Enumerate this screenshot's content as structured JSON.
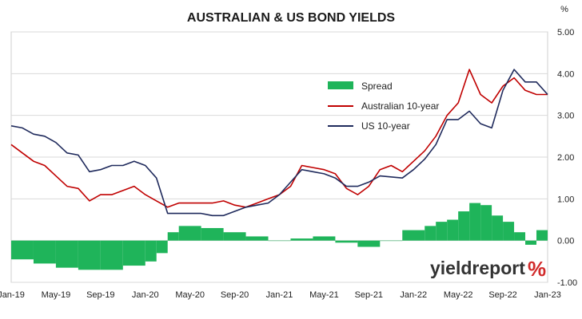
{
  "chart_data": {
    "type": "line",
    "title": "AUSTRALIAN & US BOND YIELDS",
    "unit_label": "%",
    "grid": true,
    "legend_placement": "upper-right inside plot",
    "y_axis_side": "right",
    "ylim": [
      -1.0,
      5.0
    ],
    "y_ticks": [
      5.0,
      4.0,
      3.0,
      2.0,
      1.0,
      0.0,
      -1.0
    ],
    "y_tick_labels": [
      "5.00",
      "4.00",
      "3.00",
      "2.00",
      "1.00",
      "0.00",
      "-1.00"
    ],
    "xlim": [
      "2019-01",
      "2023-01"
    ],
    "x_ticks": [
      "2019-01",
      "2019-05",
      "2019-09",
      "2020-01",
      "2020-05",
      "2020-09",
      "2021-01",
      "2021-05",
      "2021-09",
      "2022-01",
      "2022-05",
      "2022-09",
      "2023-01"
    ],
    "x_tick_labels": [
      "Jan-19",
      "May-19",
      "Sep-19",
      "Jan-20",
      "May-20",
      "Sep-20",
      "Jan-21",
      "May-21",
      "Sep-21",
      "Jan-22",
      "May-22",
      "Sep-22",
      "Jan-23"
    ],
    "series": [
      {
        "name": "Spread",
        "kind": "bar",
        "color": "#1fb45a",
        "x": [
          "2019-01",
          "2019-03",
          "2019-05",
          "2019-07",
          "2019-09",
          "2019-11",
          "2020-01",
          "2020-02",
          "2020-03",
          "2020-04",
          "2020-06",
          "2020-08",
          "2020-10",
          "2020-12",
          "2021-02",
          "2021-04",
          "2021-06",
          "2021-08",
          "2021-10",
          "2021-12",
          "2022-02",
          "2022-03",
          "2022-04",
          "2022-05",
          "2022-06",
          "2022-07",
          "2022-08",
          "2022-09",
          "2022-10",
          "2022-11",
          "2022-12",
          "2023-01"
        ],
        "values": [
          -0.45,
          -0.55,
          -0.65,
          -0.7,
          -0.7,
          -0.6,
          -0.5,
          -0.3,
          0.2,
          0.35,
          0.3,
          0.2,
          0.1,
          0.0,
          0.05,
          0.1,
          -0.05,
          -0.15,
          0.0,
          0.25,
          0.35,
          0.45,
          0.5,
          0.7,
          0.9,
          0.85,
          0.6,
          0.45,
          0.2,
          -0.1,
          0.25,
          0.05
        ]
      },
      {
        "name": "Australian 10-year",
        "kind": "line",
        "color": "#c00000",
        "x": [
          "2019-01",
          "2019-02",
          "2019-03",
          "2019-04",
          "2019-05",
          "2019-06",
          "2019-07",
          "2019-08",
          "2019-09",
          "2019-10",
          "2019-11",
          "2019-12",
          "2020-01",
          "2020-02",
          "2020-03",
          "2020-04",
          "2020-05",
          "2020-06",
          "2020-07",
          "2020-08",
          "2020-09",
          "2020-10",
          "2020-11",
          "2020-12",
          "2021-01",
          "2021-02",
          "2021-03",
          "2021-04",
          "2021-05",
          "2021-06",
          "2021-07",
          "2021-08",
          "2021-09",
          "2021-10",
          "2021-11",
          "2021-12",
          "2022-01",
          "2022-02",
          "2022-03",
          "2022-04",
          "2022-05",
          "2022-06",
          "2022-07",
          "2022-08",
          "2022-09",
          "2022-10",
          "2022-11",
          "2022-12",
          "2023-01"
        ],
        "values": [
          2.3,
          2.1,
          1.9,
          1.8,
          1.55,
          1.3,
          1.25,
          0.95,
          1.1,
          1.1,
          1.2,
          1.3,
          1.1,
          0.95,
          0.8,
          0.9,
          0.9,
          0.9,
          0.9,
          0.95,
          0.85,
          0.8,
          0.9,
          1.0,
          1.1,
          1.3,
          1.8,
          1.75,
          1.7,
          1.6,
          1.25,
          1.1,
          1.3,
          1.7,
          1.8,
          1.65,
          1.9,
          2.15,
          2.5,
          3.0,
          3.3,
          4.1,
          3.5,
          3.3,
          3.7,
          3.9,
          3.6,
          3.5,
          3.5
        ]
      },
      {
        "name": "US 10-year",
        "kind": "line",
        "color": "#1f2a5c",
        "x": [
          "2019-01",
          "2019-02",
          "2019-03",
          "2019-04",
          "2019-05",
          "2019-06",
          "2019-07",
          "2019-08",
          "2019-09",
          "2019-10",
          "2019-11",
          "2019-12",
          "2020-01",
          "2020-02",
          "2020-03",
          "2020-04",
          "2020-05",
          "2020-06",
          "2020-07",
          "2020-08",
          "2020-09",
          "2020-10",
          "2020-11",
          "2020-12",
          "2021-01",
          "2021-02",
          "2021-03",
          "2021-04",
          "2021-05",
          "2021-06",
          "2021-07",
          "2021-08",
          "2021-09",
          "2021-10",
          "2021-12",
          "2022-01",
          "2022-02",
          "2022-03",
          "2022-04",
          "2022-05",
          "2022-06",
          "2022-07",
          "2022-08",
          "2022-09",
          "2022-10",
          "2022-11",
          "2022-12",
          "2023-01"
        ],
        "values": [
          2.75,
          2.7,
          2.55,
          2.5,
          2.35,
          2.1,
          2.05,
          1.65,
          1.7,
          1.8,
          1.8,
          1.9,
          1.8,
          1.5,
          0.65,
          0.65,
          0.65,
          0.65,
          0.6,
          0.6,
          0.7,
          0.8,
          0.85,
          0.9,
          1.1,
          1.4,
          1.7,
          1.65,
          1.6,
          1.5,
          1.3,
          1.3,
          1.4,
          1.55,
          1.5,
          1.7,
          1.95,
          2.3,
          2.9,
          2.9,
          3.1,
          2.8,
          2.7,
          3.6,
          4.1,
          3.8,
          3.8,
          3.5
        ]
      }
    ]
  },
  "logo": {
    "word": "yieldreport",
    "symbol": "%"
  }
}
